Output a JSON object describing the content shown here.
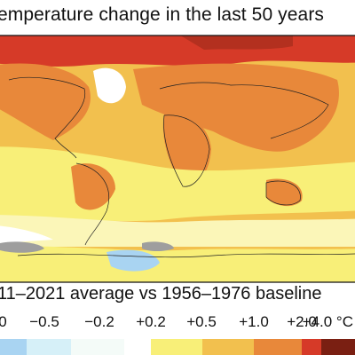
{
  "title": "emperature change in the last 50 years",
  "subtitle": "11–2021 average vs 1956–1976 baseline",
  "legend": {
    "ticks": [
      "0",
      "−0.5",
      "−0.2",
      "+0.2",
      "+0.5",
      "+1.0",
      "+2.0",
      "+4.0 °C"
    ],
    "colors": [
      "#a9d4f2",
      "#d6f0f8",
      "#f4fbf8",
      "#ffffff",
      "#f8ef78",
      "#f2c04e",
      "#e8883a",
      "#d63a28",
      "#7a1f12"
    ]
  },
  "map": {
    "projection": "Robinson-style global map",
    "no_data_color": "#9e9e9e"
  }
}
